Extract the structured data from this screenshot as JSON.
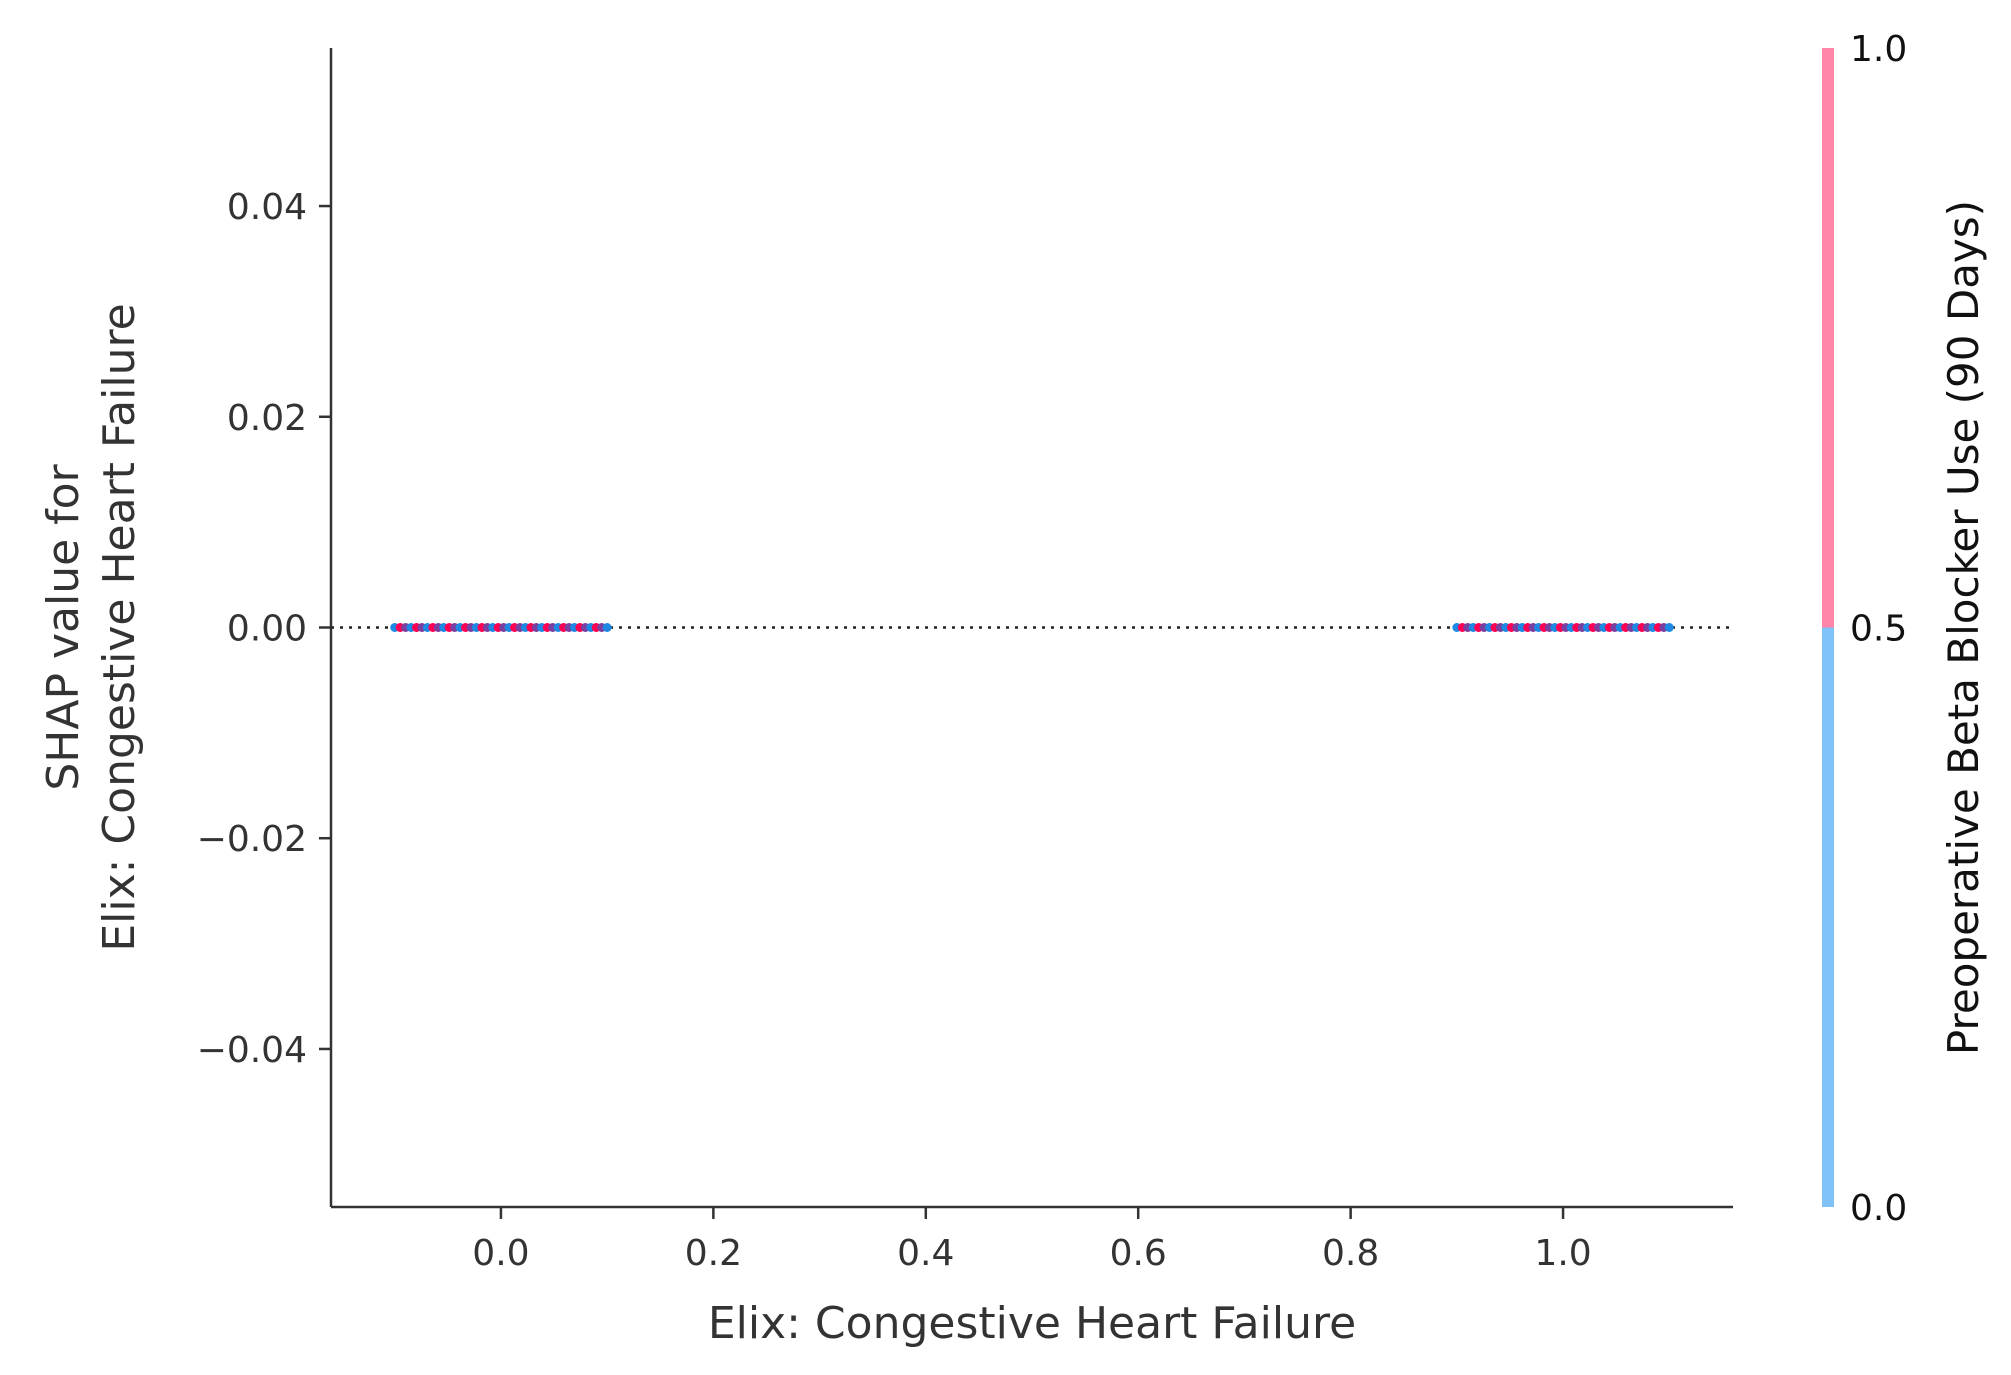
{
  "chart_data": {
    "type": "scatter",
    "xlabel": "Elix: Congestive Heart Failure",
    "ylabel_lines": [
      "SHAP value for",
      "Elix: Congestive Heart Failure"
    ],
    "xlim": [
      -0.16,
      1.16
    ],
    "ylim": [
      -0.055,
      0.055
    ],
    "x_ticks": [
      0.0,
      0.2,
      0.4,
      0.6,
      0.8,
      1.0
    ],
    "x_tick_labels": [
      "0.0",
      "0.2",
      "0.4",
      "0.6",
      "0.8",
      "1.0"
    ],
    "y_ticks": [
      0.04,
      0.02,
      0.0,
      -0.02,
      -0.04
    ],
    "y_tick_labels": [
      "0.04",
      "0.02",
      "0.00",
      "−0.02",
      "−0.04"
    ],
    "reference_line_y": 0.0,
    "colorbar": {
      "title": "Preoperative Beta Blocker Use (90 Days)",
      "ticks": [
        0.0,
        0.5,
        1.0
      ],
      "tick_labels": [
        "0.0",
        "0.5",
        "1.0"
      ],
      "low_color": "#7fc2f7",
      "high_color": "#ff86a8"
    },
    "series": [
      {
        "x_center": 0.0,
        "x_spread": 0.1,
        "y": 0.0,
        "point_count": 40,
        "colors": [
          "#1e88e5",
          "#ff0052",
          "#7b3fa0"
        ]
      },
      {
        "x_center": 1.0,
        "x_spread": 0.1,
        "y": 0.0,
        "point_count": 40,
        "colors": [
          "#1e88e5",
          "#ff0052",
          "#7b3fa0"
        ]
      }
    ]
  }
}
